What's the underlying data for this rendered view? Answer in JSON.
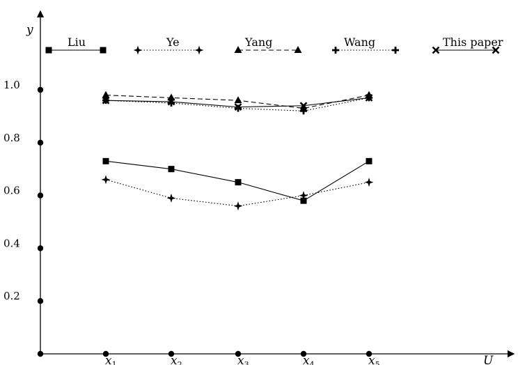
{
  "chart_data": {
    "type": "line",
    "ylabel": "y",
    "xlabel": "U",
    "categories": [
      "x1",
      "x2",
      "x3",
      "x4",
      "x5"
    ],
    "category_labels": [
      {
        "base": "x",
        "sub": "1"
      },
      {
        "base": "x",
        "sub": "2"
      },
      {
        "base": "x",
        "sub": "3"
      },
      {
        "base": "x",
        "sub": "4"
      },
      {
        "base": "x",
        "sub": "5"
      }
    ],
    "y_ticks": [
      0.2,
      0.4,
      0.6,
      0.8,
      1.0
    ],
    "y_tick_labels": [
      "0.2",
      "0.4",
      "0.6",
      "0.8",
      "1.0"
    ],
    "ylim": [
      0.0,
      1.25
    ],
    "legend_position": "top",
    "series": [
      {
        "name": "Liu",
        "marker": "square",
        "line_style": "solid",
        "values": [
          0.73,
          0.7,
          0.65,
          0.58,
          0.73
        ]
      },
      {
        "name": "Ye",
        "marker": "star",
        "line_style": "dotted",
        "values": [
          0.66,
          0.59,
          0.56,
          0.6,
          0.65
        ]
      },
      {
        "name": "Yang",
        "marker": "triangle",
        "line_style": "dashed",
        "values": [
          0.98,
          0.97,
          0.96,
          0.93,
          0.98
        ]
      },
      {
        "name": "Wang",
        "marker": "plus",
        "line_style": "dotted",
        "values": [
          0.96,
          0.95,
          0.93,
          0.92,
          0.97
        ]
      },
      {
        "name": "This paper",
        "marker": "cross",
        "line_style": "solid",
        "values": [
          0.96,
          0.955,
          0.935,
          0.94,
          0.97
        ]
      }
    ]
  }
}
